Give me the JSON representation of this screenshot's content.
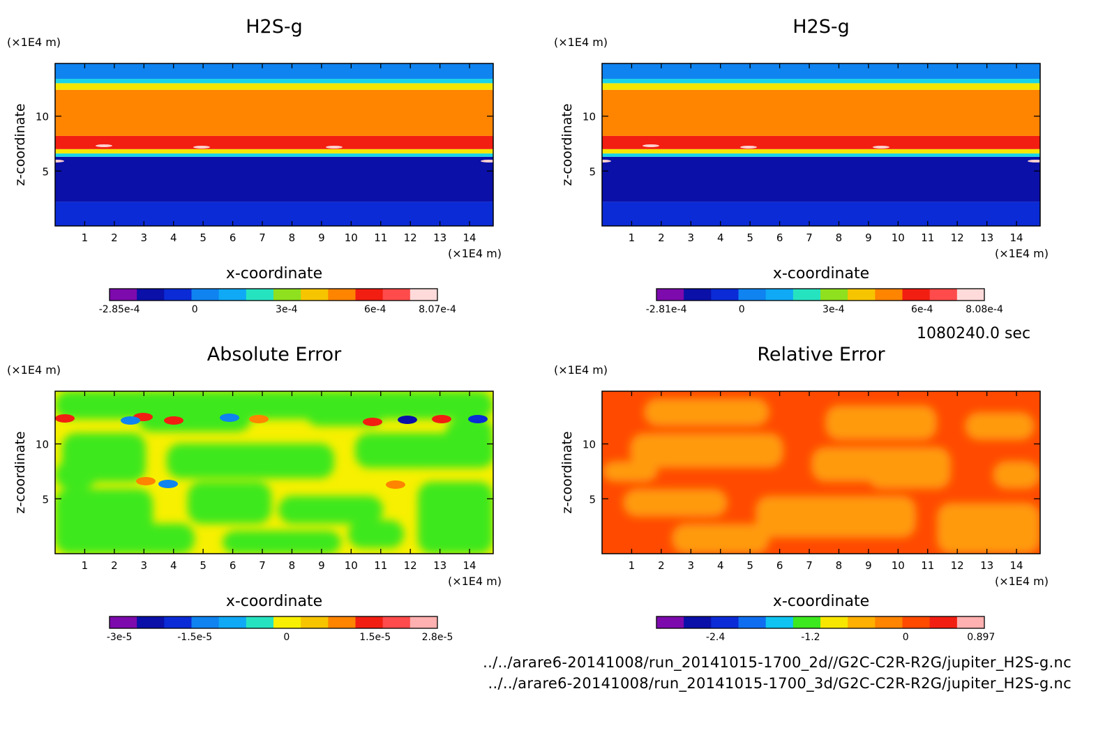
{
  "timestamp": "1080240.0 sec",
  "footer": {
    "path_2d": "../../arare6-20141008/run_20141015-1700_2d//G2C-C2R-R2G/jupiter_H2S-g.nc",
    "path_3d": "../../arare6-20141008/run_20141015-1700_3d/G2C-C2R-R2G/jupiter_H2S-g.nc"
  },
  "chart_data": [
    {
      "type": "heatmap",
      "title": "H2S-g",
      "xlabel": "x-coordinate",
      "ylabel": "z-coordinate",
      "x_unit": "(×1E4 m)",
      "z_unit": "(×1E4 m)",
      "xlim": [
        0,
        14.8
      ],
      "zlim": [
        0,
        14.8
      ],
      "x_ticks": [
        "1",
        "2",
        "3",
        "4",
        "5",
        "6",
        "7",
        "8",
        "9",
        "10",
        "11",
        "12",
        "13",
        "14"
      ],
      "z_ticks": [
        "5",
        "10"
      ],
      "bands": [
        {
          "z": [
            0,
            2.2
          ],
          "color": "#0a2bd6"
        },
        {
          "z": [
            2.2,
            6.3
          ],
          "color": "#0a10a8"
        },
        {
          "z": [
            6.3,
            6.6
          ],
          "color": "#19d3e6"
        },
        {
          "z": [
            6.6,
            7.0
          ],
          "color": "#f7e600"
        },
        {
          "z": [
            7.0,
            8.2
          ],
          "color": "#f21e12"
        },
        {
          "z": [
            8.2,
            12.4
          ],
          "color": "#ff8400"
        },
        {
          "z": [
            12.4,
            13.0
          ],
          "color": "#f7e600"
        },
        {
          "z": [
            13.0,
            13.4
          ],
          "color": "#19d3e6"
        },
        {
          "z": [
            13.4,
            14.8
          ],
          "color": "#0f83f0"
        }
      ],
      "colorbar": {
        "colors": [
          "#7d0aad",
          "#0a10a8",
          "#0a2bd6",
          "#0f83f0",
          "#0fa9f5",
          "#26e3c0",
          "#8fe01e",
          "#f7c400",
          "#ff8400",
          "#f21e12",
          "#ff4b4b",
          "#ffdada"
        ],
        "labels": [
          "-2.85e-4",
          "0",
          "3e-4",
          "6e-4",
          "8.07e-4"
        ]
      }
    },
    {
      "type": "heatmap",
      "title": "H2S-g",
      "xlabel": "x-coordinate",
      "ylabel": "z-coordinate",
      "x_unit": "(×1E4 m)",
      "z_unit": "(×1E4 m)",
      "xlim": [
        0,
        14.8
      ],
      "zlim": [
        0,
        14.8
      ],
      "x_ticks": [
        "1",
        "2",
        "3",
        "4",
        "5",
        "6",
        "7",
        "8",
        "9",
        "10",
        "11",
        "12",
        "13",
        "14"
      ],
      "z_ticks": [
        "5",
        "10"
      ],
      "bands": [
        {
          "z": [
            0,
            2.2
          ],
          "color": "#0a2bd6"
        },
        {
          "z": [
            2.2,
            6.3
          ],
          "color": "#0a10a8"
        },
        {
          "z": [
            6.3,
            6.6
          ],
          "color": "#19d3e6"
        },
        {
          "z": [
            6.6,
            7.0
          ],
          "color": "#f7e600"
        },
        {
          "z": [
            7.0,
            8.2
          ],
          "color": "#f21e12"
        },
        {
          "z": [
            8.2,
            12.4
          ],
          "color": "#ff8400"
        },
        {
          "z": [
            12.4,
            13.0
          ],
          "color": "#f7e600"
        },
        {
          "z": [
            13.0,
            13.4
          ],
          "color": "#19d3e6"
        },
        {
          "z": [
            13.4,
            14.8
          ],
          "color": "#0f83f0"
        }
      ],
      "colorbar": {
        "colors": [
          "#7d0aad",
          "#0a10a8",
          "#0a2bd6",
          "#0f83f0",
          "#0fa9f5",
          "#26e3c0",
          "#8fe01e",
          "#f7c400",
          "#ff8400",
          "#f21e12",
          "#ff4b4b",
          "#ffdada"
        ],
        "labels": [
          "-2.81e-4",
          "0",
          "3e-4",
          "6e-4",
          "8.08e-4"
        ]
      }
    },
    {
      "type": "heatmap",
      "title": "Absolute Error",
      "xlabel": "x-coordinate",
      "ylabel": "z-coordinate",
      "x_unit": "(×1E4 m)",
      "z_unit": "(×1E4 m)",
      "xlim": [
        0,
        14.8
      ],
      "zlim": [
        0,
        14.8
      ],
      "x_ticks": [
        "1",
        "2",
        "3",
        "4",
        "5",
        "6",
        "7",
        "8",
        "9",
        "10",
        "11",
        "12",
        "13",
        "14"
      ],
      "z_ticks": [
        "5",
        "10"
      ],
      "background": "#f7f000",
      "patches_color": "#3ce81e",
      "colorbar": {
        "colors": [
          "#7d0aad",
          "#0a10a8",
          "#0a2bd6",
          "#0f83f0",
          "#0fa9f5",
          "#26e3c0",
          "#f7f000",
          "#f7c400",
          "#ff8400",
          "#f21e12",
          "#ff4b4b",
          "#ffb0b0"
        ],
        "labels": [
          "-3e-5",
          "-1.5e-5",
          "0",
          "1.5e-5",
          "2.8e-5"
        ]
      }
    },
    {
      "type": "heatmap",
      "title": "Relative Error",
      "xlabel": "x-coordinate",
      "ylabel": "z-coordinate",
      "x_unit": "(×1E4 m)",
      "z_unit": "(×1E4 m)",
      "xlim": [
        0,
        14.8
      ],
      "zlim": [
        0,
        14.8
      ],
      "x_ticks": [
        "1",
        "2",
        "3",
        "4",
        "5",
        "6",
        "7",
        "8",
        "9",
        "10",
        "11",
        "12",
        "13",
        "14"
      ],
      "z_ticks": [
        "5",
        "10"
      ],
      "background": "#ff4a00",
      "patches_color": "#ff9a0a",
      "colorbar": {
        "colors": [
          "#7d0aad",
          "#0a10a8",
          "#0a2bd6",
          "#0f6ef0",
          "#0fc4f0",
          "#3ce81e",
          "#f7e600",
          "#ffb000",
          "#ff8400",
          "#ff4a00",
          "#f21e12",
          "#ffb0b0"
        ],
        "labels": [
          "-2.4",
          "-1.2",
          "0",
          "0.897"
        ]
      }
    }
  ]
}
